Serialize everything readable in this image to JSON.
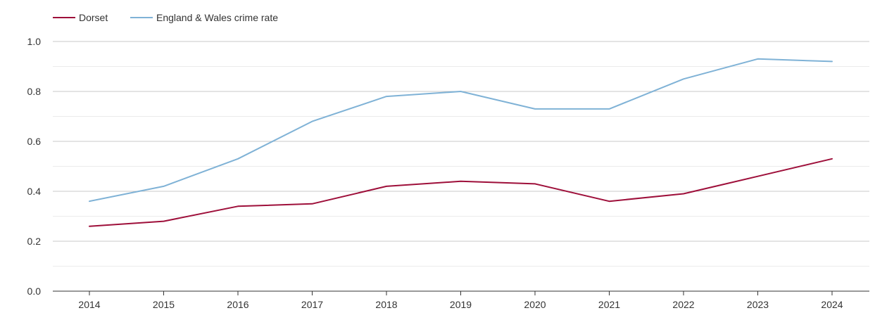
{
  "chart_data": {
    "type": "line",
    "title": "",
    "xlabel": "",
    "ylabel": "",
    "categories": [
      "2014",
      "2015",
      "2016",
      "2017",
      "2018",
      "2019",
      "2020",
      "2021",
      "2022",
      "2023",
      "2024"
    ],
    "ylim": [
      0,
      1.0
    ],
    "yticks": [
      "0.0",
      "0.2",
      "0.4",
      "0.6",
      "0.8",
      "1.0"
    ],
    "grid": true,
    "legend_position": "top-left",
    "series": [
      {
        "name": "Dorset",
        "color": "#9e0f3a",
        "values": [
          0.26,
          0.28,
          0.34,
          0.35,
          0.42,
          0.44,
          0.43,
          0.36,
          0.39,
          0.46,
          0.53
        ]
      },
      {
        "name": "England & Wales crime rate",
        "color": "#7fb2d6",
        "values": [
          0.36,
          0.42,
          0.53,
          0.68,
          0.78,
          0.8,
          0.73,
          0.73,
          0.85,
          0.93,
          0.92
        ]
      }
    ]
  }
}
